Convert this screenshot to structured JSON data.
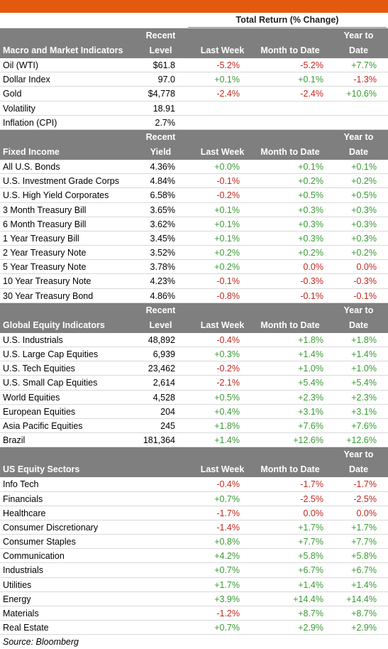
{
  "super_header": "Total Return (% Change)",
  "source": "Source: Bloomberg",
  "sections": [
    {
      "title": "Macro and Market Indicators",
      "col1_top": "Recent",
      "col1_bottom": "Level",
      "col2": "Last Week",
      "col3": "Month to Date",
      "col4_top": "Year to",
      "col4_bottom": "Date",
      "rows": [
        {
          "name": "Oil (WTI)",
          "level": "$61.8",
          "week": "-5.2%",
          "mtd": "-5.2%",
          "ytd": "+7.7%"
        },
        {
          "name": "Dollar Index",
          "level": "97.0",
          "week": "+0.1%",
          "mtd": "+0.1%",
          "ytd": "-1.3%"
        },
        {
          "name": "Gold",
          "level": "$4,778",
          "week": "-2.4%",
          "mtd": "-2.4%",
          "ytd": "+10.6%"
        },
        {
          "name": "Volatility",
          "level": "18.91",
          "week": "",
          "mtd": "",
          "ytd": ""
        },
        {
          "name": "Inflation (CPI)",
          "level": "2.7%",
          "week": "",
          "mtd": "",
          "ytd": ""
        }
      ]
    },
    {
      "title": "Fixed Income",
      "col1_top": "Recent",
      "col1_bottom": "Yield",
      "col2": "Last Week",
      "col3": "Month to Date",
      "col4_top": "Year to",
      "col4_bottom": "Date",
      "rows": [
        {
          "name": "All U.S. Bonds",
          "level": "4.36%",
          "week": "+0.0%",
          "mtd": "+0.1%",
          "ytd": "+0.1%"
        },
        {
          "name": "U.S. Investment Grade Corps",
          "level": "4.84%",
          "week": "-0.1%",
          "mtd": "+0.2%",
          "ytd": "+0.2%"
        },
        {
          "name": "U.S. High Yield Corporates",
          "level": "6.58%",
          "week": "-0.2%",
          "mtd": "+0.5%",
          "ytd": "+0.5%"
        },
        {
          "name": "3 Month Treasury Bill",
          "level": "3.65%",
          "week": "+0.1%",
          "mtd": "+0.3%",
          "ytd": "+0.3%"
        },
        {
          "name": "6 Month Treasury Bill",
          "level": "3.62%",
          "week": "+0.1%",
          "mtd": "+0.3%",
          "ytd": "+0.3%"
        },
        {
          "name": "1 Year Treasury Bill",
          "level": "3.45%",
          "week": "+0.1%",
          "mtd": "+0.3%",
          "ytd": "+0.3%"
        },
        {
          "name": "2 Year Treasury Note",
          "level": "3.52%",
          "week": "+0.2%",
          "mtd": "+0.2%",
          "ytd": "+0.2%"
        },
        {
          "name": "5 Year Treasury Note",
          "level": "3.78%",
          "week": "+0.2%",
          "mtd": "0.0%",
          "ytd": "0.0%"
        },
        {
          "name": "10 Year Treasury Note",
          "level": "4.23%",
          "week": "-0.1%",
          "mtd": "-0.3%",
          "ytd": "-0.3%"
        },
        {
          "name": "30 Year Treasury Bond",
          "level": "4.86%",
          "week": "-0.8%",
          "mtd": "-0.1%",
          "ytd": "-0.1%"
        }
      ]
    },
    {
      "title": "Global Equity Indicators",
      "col1_top": "Recent",
      "col1_bottom": "Level",
      "col2": "Last Week",
      "col3": "Month to Date",
      "col4_top": "Year to",
      "col4_bottom": "Date",
      "rows": [
        {
          "name": "U.S. Industrials",
          "level": "48,892",
          "week": "-0.4%",
          "mtd": "+1.8%",
          "ytd": "+1.8%"
        },
        {
          "name": "U.S. Large Cap Equities",
          "level": "6,939",
          "week": "+0.3%",
          "mtd": "+1.4%",
          "ytd": "+1.4%"
        },
        {
          "name": "U.S. Tech Equities",
          "level": "23,462",
          "week": "-0.2%",
          "mtd": "+1.0%",
          "ytd": "+1.0%"
        },
        {
          "name": "U.S. Small Cap Equities",
          "level": "2,614",
          "week": "-2.1%",
          "mtd": "+5.4%",
          "ytd": "+5.4%"
        },
        {
          "name": "World Equities",
          "level": "4,528",
          "week": "+0.5%",
          "mtd": "+2.3%",
          "ytd": "+2.3%"
        },
        {
          "name": "European Equities",
          "level": "204",
          "week": "+0.4%",
          "mtd": "+3.1%",
          "ytd": "+3.1%"
        },
        {
          "name": "Asia Pacific Equities",
          "level": "245",
          "week": "+1.8%",
          "mtd": "+7.6%",
          "ytd": "+7.6%"
        },
        {
          "name": "Brazil",
          "level": "181,364",
          "week": "+1.4%",
          "mtd": "+12.6%",
          "ytd": "+12.6%"
        }
      ]
    },
    {
      "title": "US Equity Sectors",
      "col1_top": "",
      "col1_bottom": "",
      "col2": "Last Week",
      "col3": "Month to Date",
      "col4_top": "Year to",
      "col4_bottom": "Date",
      "rows": [
        {
          "name": "Info Tech",
          "level": "",
          "week": "-0.4%",
          "mtd": "-1.7%",
          "ytd": "-1.7%"
        },
        {
          "name": "Financials",
          "level": "",
          "week": "+0.7%",
          "mtd": "-2.5%",
          "ytd": "-2.5%"
        },
        {
          "name": "Healthcare",
          "level": "",
          "week": "-1.7%",
          "mtd": "0.0%",
          "ytd": "0.0%"
        },
        {
          "name": "Consumer Discretionary",
          "level": "",
          "week": "-1.4%",
          "mtd": "+1.7%",
          "ytd": "+1.7%"
        },
        {
          "name": "Consumer Staples",
          "level": "",
          "week": "+0.8%",
          "mtd": "+7.7%",
          "ytd": "+7.7%"
        },
        {
          "name": "Communication",
          "level": "",
          "week": "+4.2%",
          "mtd": "+5.8%",
          "ytd": "+5.8%"
        },
        {
          "name": "Industrials",
          "level": "",
          "week": "+0.7%",
          "mtd": "+6.7%",
          "ytd": "+6.7%"
        },
        {
          "name": "Utilities",
          "level": "",
          "week": "+1.7%",
          "mtd": "+1.4%",
          "ytd": "+1.4%"
        },
        {
          "name": "Energy",
          "level": "",
          "week": "+3.9%",
          "mtd": "+14.4%",
          "ytd": "+14.4%"
        },
        {
          "name": "Materials",
          "level": "",
          "week": "-1.2%",
          "mtd": "+8.7%",
          "ytd": "+8.7%"
        },
        {
          "name": "Real Estate",
          "level": "",
          "week": "+0.7%",
          "mtd": "+2.9%",
          "ytd": "+2.9%"
        }
      ]
    }
  ]
}
